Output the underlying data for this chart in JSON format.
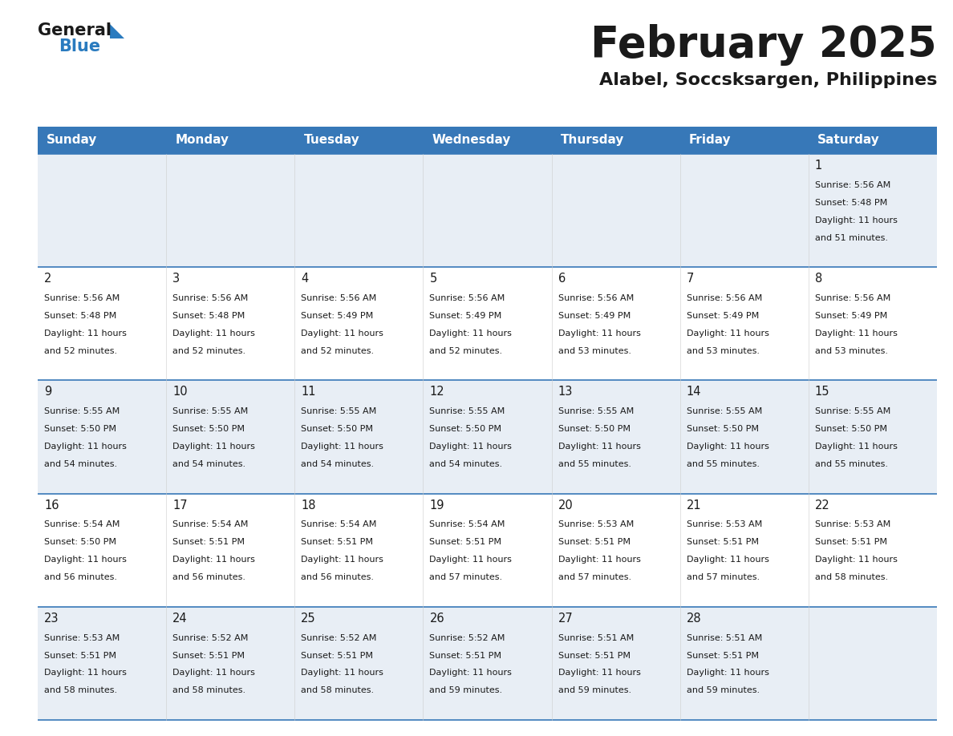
{
  "title": "February 2025",
  "subtitle": "Alabel, Soccsksargen, Philippines",
  "header_bg_color": "#3778b8",
  "header_text_color": "#ffffff",
  "divider_color": "#3778b8",
  "cell_bg_even": "#e8eef5",
  "cell_bg_odd": "#ffffff",
  "text_color": "#1a1a1a",
  "day_headers": [
    "Sunday",
    "Monday",
    "Tuesday",
    "Wednesday",
    "Thursday",
    "Friday",
    "Saturday"
  ],
  "logo_general_color": "#1a1a1a",
  "logo_blue_color": "#2a7bbf",
  "calendar_data": [
    [
      null,
      null,
      null,
      null,
      null,
      null,
      {
        "day": "1",
        "sunrise": "5:56 AM",
        "sunset": "5:48 PM",
        "daylight_h": "11 hours",
        "daylight_m": "51 minutes."
      }
    ],
    [
      {
        "day": "2",
        "sunrise": "5:56 AM",
        "sunset": "5:48 PM",
        "daylight_h": "11 hours",
        "daylight_m": "52 minutes."
      },
      {
        "day": "3",
        "sunrise": "5:56 AM",
        "sunset": "5:48 PM",
        "daylight_h": "11 hours",
        "daylight_m": "52 minutes."
      },
      {
        "day": "4",
        "sunrise": "5:56 AM",
        "sunset": "5:49 PM",
        "daylight_h": "11 hours",
        "daylight_m": "52 minutes."
      },
      {
        "day": "5",
        "sunrise": "5:56 AM",
        "sunset": "5:49 PM",
        "daylight_h": "11 hours",
        "daylight_m": "52 minutes."
      },
      {
        "day": "6",
        "sunrise": "5:56 AM",
        "sunset": "5:49 PM",
        "daylight_h": "11 hours",
        "daylight_m": "53 minutes."
      },
      {
        "day": "7",
        "sunrise": "5:56 AM",
        "sunset": "5:49 PM",
        "daylight_h": "11 hours",
        "daylight_m": "53 minutes."
      },
      {
        "day": "8",
        "sunrise": "5:56 AM",
        "sunset": "5:49 PM",
        "daylight_h": "11 hours",
        "daylight_m": "53 minutes."
      }
    ],
    [
      {
        "day": "9",
        "sunrise": "5:55 AM",
        "sunset": "5:50 PM",
        "daylight_h": "11 hours",
        "daylight_m": "54 minutes."
      },
      {
        "day": "10",
        "sunrise": "5:55 AM",
        "sunset": "5:50 PM",
        "daylight_h": "11 hours",
        "daylight_m": "54 minutes."
      },
      {
        "day": "11",
        "sunrise": "5:55 AM",
        "sunset": "5:50 PM",
        "daylight_h": "11 hours",
        "daylight_m": "54 minutes."
      },
      {
        "day": "12",
        "sunrise": "5:55 AM",
        "sunset": "5:50 PM",
        "daylight_h": "11 hours",
        "daylight_m": "54 minutes."
      },
      {
        "day": "13",
        "sunrise": "5:55 AM",
        "sunset": "5:50 PM",
        "daylight_h": "11 hours",
        "daylight_m": "55 minutes."
      },
      {
        "day": "14",
        "sunrise": "5:55 AM",
        "sunset": "5:50 PM",
        "daylight_h": "11 hours",
        "daylight_m": "55 minutes."
      },
      {
        "day": "15",
        "sunrise": "5:55 AM",
        "sunset": "5:50 PM",
        "daylight_h": "11 hours",
        "daylight_m": "55 minutes."
      }
    ],
    [
      {
        "day": "16",
        "sunrise": "5:54 AM",
        "sunset": "5:50 PM",
        "daylight_h": "11 hours",
        "daylight_m": "56 minutes."
      },
      {
        "day": "17",
        "sunrise": "5:54 AM",
        "sunset": "5:51 PM",
        "daylight_h": "11 hours",
        "daylight_m": "56 minutes."
      },
      {
        "day": "18",
        "sunrise": "5:54 AM",
        "sunset": "5:51 PM",
        "daylight_h": "11 hours",
        "daylight_m": "56 minutes."
      },
      {
        "day": "19",
        "sunrise": "5:54 AM",
        "sunset": "5:51 PM",
        "daylight_h": "11 hours",
        "daylight_m": "57 minutes."
      },
      {
        "day": "20",
        "sunrise": "5:53 AM",
        "sunset": "5:51 PM",
        "daylight_h": "11 hours",
        "daylight_m": "57 minutes."
      },
      {
        "day": "21",
        "sunrise": "5:53 AM",
        "sunset": "5:51 PM",
        "daylight_h": "11 hours",
        "daylight_m": "57 minutes."
      },
      {
        "day": "22",
        "sunrise": "5:53 AM",
        "sunset": "5:51 PM",
        "daylight_h": "11 hours",
        "daylight_m": "58 minutes."
      }
    ],
    [
      {
        "day": "23",
        "sunrise": "5:53 AM",
        "sunset": "5:51 PM",
        "daylight_h": "11 hours",
        "daylight_m": "58 minutes."
      },
      {
        "day": "24",
        "sunrise": "5:52 AM",
        "sunset": "5:51 PM",
        "daylight_h": "11 hours",
        "daylight_m": "58 minutes."
      },
      {
        "day": "25",
        "sunrise": "5:52 AM",
        "sunset": "5:51 PM",
        "daylight_h": "11 hours",
        "daylight_m": "58 minutes."
      },
      {
        "day": "26",
        "sunrise": "5:52 AM",
        "sunset": "5:51 PM",
        "daylight_h": "11 hours",
        "daylight_m": "59 minutes."
      },
      {
        "day": "27",
        "sunrise": "5:51 AM",
        "sunset": "5:51 PM",
        "daylight_h": "11 hours",
        "daylight_m": "59 minutes."
      },
      {
        "day": "28",
        "sunrise": "5:51 AM",
        "sunset": "5:51 PM",
        "daylight_h": "11 hours",
        "daylight_m": "59 minutes."
      },
      null
    ]
  ]
}
